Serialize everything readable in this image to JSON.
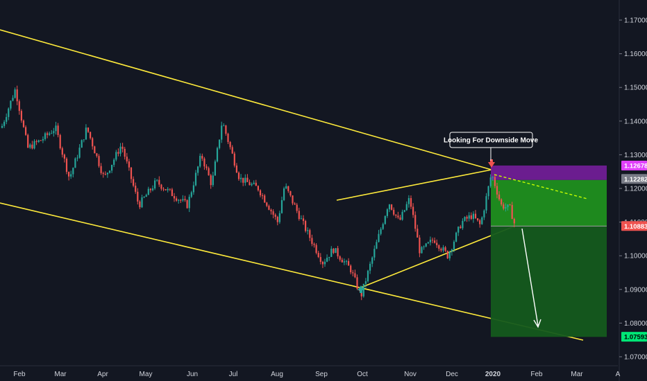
{
  "chart_data": {
    "type": "candlestick",
    "instrument_note": "",
    "y_axis": {
      "ticks": [
        "1.17000",
        "1.16000",
        "1.15000",
        "1.14000",
        "1.13000",
        "1.12000",
        "1.11000",
        "1.10000",
        "1.09000",
        "1.08000",
        "1.07000"
      ],
      "ylim": [
        1.065,
        1.177
      ]
    },
    "x_axis": {
      "ticks": [
        "Feb",
        "Mar",
        "Apr",
        "May",
        "Jun",
        "Jul",
        "Aug",
        "Sep",
        "Oct",
        "Nov",
        "Dec",
        "2020",
        "Feb",
        "Mar",
        "A"
      ]
    },
    "price_labels": [
      {
        "value": "1.12678",
        "color": "#e040fb",
        "text_color": "#ffffff"
      },
      {
        "value": "1.12282",
        "color": "#787b86",
        "text_color": "#ffffff"
      },
      {
        "value": "1.10883",
        "color": "#ef5350",
        "text_color": "#ffffff"
      },
      {
        "value": "1.07593",
        "color": "#00e676",
        "text_color": "#000000"
      }
    ],
    "annotation": "Looking For Downside Move",
    "trade_setup": {
      "direction": "short",
      "entry": 1.1088,
      "stop": 1.1268,
      "target": 1.0759
    },
    "colors": {
      "background": "#131722",
      "up": "#26a69a",
      "down": "#ef5350",
      "trendline": "#ffeb3b",
      "stop_zone": "#7b1fa2",
      "target_zone_light": "#1f8f1f",
      "target_zone_dark": "#145a1d",
      "grid": "#1e2230"
    },
    "grid": false,
    "icons": [
      "arrow-down-marker-icon",
      "arrow-up-marker-icon"
    ]
  }
}
